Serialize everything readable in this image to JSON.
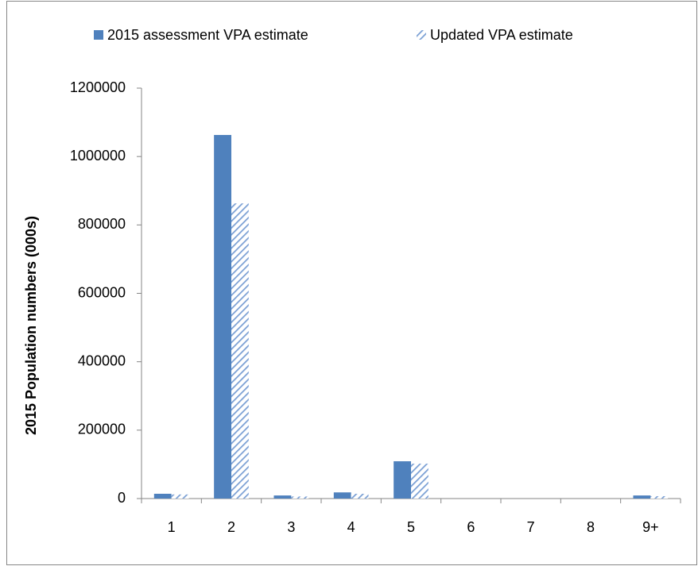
{
  "chart_data": {
    "type": "bar",
    "y_label": "2015 Population numbers (000s)",
    "categories": [
      "1",
      "2",
      "3",
      "4",
      "5",
      "6",
      "7",
      "8",
      "9+"
    ],
    "series": [
      {
        "name": "2015 assessment VPA estimate",
        "color": "#4f81bd",
        "hatch": false,
        "values": [
          14000,
          1063000,
          9000,
          18000,
          109000,
          0,
          0,
          0,
          9000
        ]
      },
      {
        "name": "Updated VPA estimate",
        "color": "#7a9fd4",
        "hatch": true,
        "values": [
          12000,
          863000,
          6000,
          14000,
          102000,
          0,
          0,
          0,
          7000
        ]
      }
    ],
    "ylim": [
      0,
      1200000
    ],
    "yticks": [
      0,
      200000,
      400000,
      600000,
      800000,
      1000000,
      1200000
    ],
    "grid": false,
    "legend": "top"
  }
}
